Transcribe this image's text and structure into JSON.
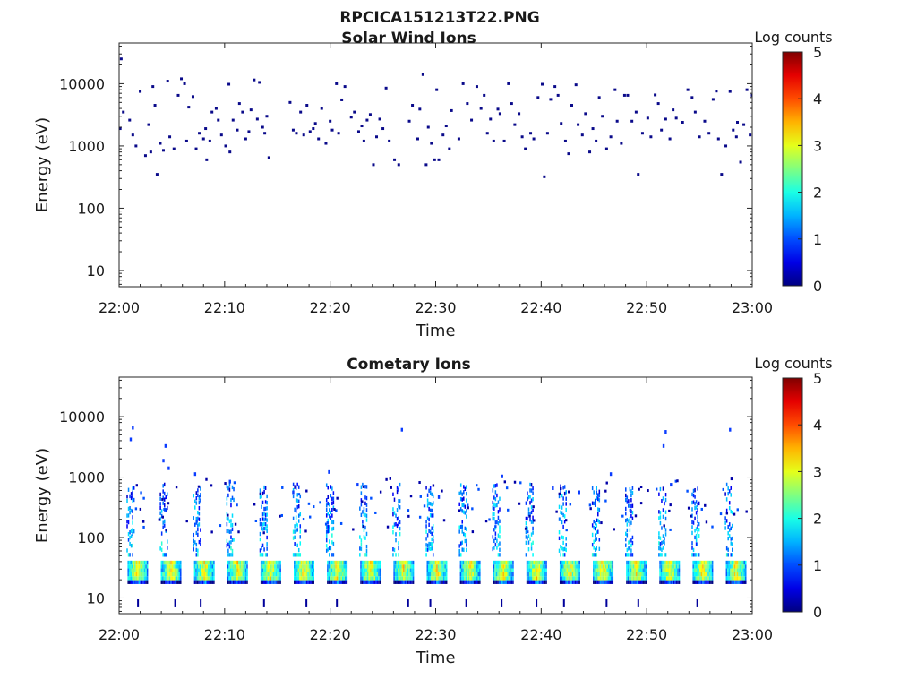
{
  "figure": {
    "title": "RPCICA151213T22.PNG"
  },
  "colors": {
    "dot": "#0a0a8a",
    "axis": "#262626"
  },
  "chart_data": [
    {
      "type": "heatmap",
      "title": "Solar Wind Ions",
      "xlabel": "Time",
      "ylabel": "Energy (eV)",
      "x_ticks": [
        "22:00",
        "22:10",
        "22:20",
        "22:30",
        "22:40",
        "22:50",
        "23:00"
      ],
      "y_scale": "log",
      "y_ticks": [
        "10",
        "100",
        "1000",
        "10000"
      ],
      "ylim": [
        5.5,
        45000
      ],
      "xlim_minutes": [
        0,
        60
      ],
      "colorbar": {
        "label": "Log counts",
        "ticks": [
          "0",
          "1",
          "2",
          "3",
          "4",
          "5"
        ],
        "range": [
          0,
          5
        ],
        "colormap": "jet"
      },
      "points": [
        [
          0.2,
          25000
        ],
        [
          0.1,
          1900
        ],
        [
          0.4,
          3500
        ],
        [
          1.0,
          2600
        ],
        [
          1.3,
          1500
        ],
        [
          1.6,
          1000
        ],
        [
          2.0,
          7500
        ],
        [
          2.5,
          700
        ],
        [
          2.8,
          2200
        ],
        [
          3.0,
          800
        ],
        [
          3.2,
          9000
        ],
        [
          3.4,
          4500
        ],
        [
          3.6,
          350
        ],
        [
          3.9,
          1100
        ],
        [
          4.2,
          850
        ],
        [
          4.6,
          11000
        ],
        [
          4.8,
          1400
        ],
        [
          5.2,
          900
        ],
        [
          5.6,
          6500
        ],
        [
          5.9,
          12000
        ],
        [
          6.2,
          10000
        ],
        [
          6.4,
          1200
        ],
        [
          6.6,
          4200
        ],
        [
          7.0,
          6200
        ],
        [
          7.3,
          900
        ],
        [
          7.6,
          1600
        ],
        [
          8.0,
          1300
        ],
        [
          8.2,
          1900
        ],
        [
          8.3,
          600
        ],
        [
          8.6,
          1200
        ],
        [
          8.8,
          3500
        ],
        [
          9.2,
          4000
        ],
        [
          9.4,
          2600
        ],
        [
          9.7,
          1500
        ],
        [
          10.1,
          1000
        ],
        [
          10.4,
          9800
        ],
        [
          10.5,
          800
        ],
        [
          10.8,
          2600
        ],
        [
          11.2,
          1800
        ],
        [
          11.4,
          4800
        ],
        [
          11.7,
          3500
        ],
        [
          12.0,
          1300
        ],
        [
          12.3,
          1700
        ],
        [
          12.5,
          3800
        ],
        [
          12.8,
          11500
        ],
        [
          13.1,
          2700
        ],
        [
          13.3,
          10500
        ],
        [
          13.6,
          2000
        ],
        [
          13.8,
          1600
        ],
        [
          14.0,
          3000
        ],
        [
          14.2,
          650
        ],
        [
          16.2,
          5000
        ],
        [
          16.5,
          1800
        ],
        [
          16.8,
          1600
        ],
        [
          17.2,
          3500
        ],
        [
          17.5,
          1500
        ],
        [
          17.8,
          4500
        ],
        [
          18.1,
          1700
        ],
        [
          18.4,
          1900
        ],
        [
          18.6,
          2300
        ],
        [
          18.9,
          1300
        ],
        [
          19.2,
          4000
        ],
        [
          19.6,
          1100
        ],
        [
          20.0,
          2500
        ],
        [
          20.2,
          1800
        ],
        [
          20.6,
          10000
        ],
        [
          20.8,
          1600
        ],
        [
          21.1,
          5500
        ],
        [
          21.4,
          9000
        ],
        [
          22.0,
          2900
        ],
        [
          22.3,
          3500
        ],
        [
          22.7,
          1700
        ],
        [
          23.0,
          2100
        ],
        [
          23.2,
          1200
        ],
        [
          23.5,
          2600
        ],
        [
          23.8,
          3200
        ],
        [
          24.1,
          500
        ],
        [
          24.4,
          1400
        ],
        [
          24.7,
          2700
        ],
        [
          25.0,
          1900
        ],
        [
          25.3,
          8500
        ],
        [
          25.6,
          1200
        ],
        [
          26.1,
          600
        ],
        [
          26.5,
          500
        ],
        [
          27.5,
          2500
        ],
        [
          27.8,
          4500
        ],
        [
          28.3,
          1300
        ],
        [
          28.5,
          3900
        ],
        [
          28.8,
          14000
        ],
        [
          29.1,
          500
        ],
        [
          29.3,
          2000
        ],
        [
          29.6,
          1100
        ],
        [
          29.9,
          600
        ],
        [
          30.1,
          8000
        ],
        [
          30.3,
          600
        ],
        [
          30.7,
          1500
        ],
        [
          31.0,
          2100
        ],
        [
          31.3,
          900
        ],
        [
          31.5,
          3700
        ],
        [
          32.2,
          1300
        ],
        [
          32.6,
          10000
        ],
        [
          33.0,
          4800
        ],
        [
          33.4,
          2600
        ],
        [
          33.9,
          9000
        ],
        [
          34.3,
          4000
        ],
        [
          34.6,
          6500
        ],
        [
          34.9,
          1600
        ],
        [
          35.2,
          2700
        ],
        [
          35.5,
          1200
        ],
        [
          35.9,
          3900
        ],
        [
          36.1,
          3300
        ],
        [
          36.5,
          1200
        ],
        [
          36.9,
          10000
        ],
        [
          37.2,
          4800
        ],
        [
          37.5,
          2200
        ],
        [
          37.9,
          3300
        ],
        [
          38.2,
          1400
        ],
        [
          38.5,
          900
        ],
        [
          39.0,
          1600
        ],
        [
          39.3,
          1300
        ],
        [
          39.7,
          6000
        ],
        [
          40.1,
          9800
        ],
        [
          40.3,
          320
        ],
        [
          40.6,
          1600
        ],
        [
          40.9,
          5600
        ],
        [
          41.3,
          9000
        ],
        [
          41.6,
          6500
        ],
        [
          41.9,
          2300
        ],
        [
          42.3,
          1200
        ],
        [
          42.6,
          750
        ],
        [
          42.9,
          4500
        ],
        [
          43.3,
          9600
        ],
        [
          43.5,
          2200
        ],
        [
          43.9,
          1500
        ],
        [
          44.2,
          3300
        ],
        [
          44.6,
          800
        ],
        [
          44.9,
          1900
        ],
        [
          45.2,
          1200
        ],
        [
          45.5,
          6000
        ],
        [
          45.8,
          3000
        ],
        [
          46.2,
          900
        ],
        [
          46.6,
          1400
        ],
        [
          47.0,
          8000
        ],
        [
          47.2,
          2500
        ],
        [
          47.6,
          1100
        ],
        [
          47.9,
          6500
        ],
        [
          48.2,
          6500
        ],
        [
          48.6,
          2500
        ],
        [
          49.0,
          3500
        ],
        [
          49.2,
          350
        ],
        [
          49.6,
          1600
        ],
        [
          50.1,
          2800
        ],
        [
          50.4,
          1400
        ],
        [
          50.8,
          6600
        ],
        [
          51.1,
          4800
        ],
        [
          51.4,
          1800
        ],
        [
          51.8,
          2700
        ],
        [
          52.2,
          1300
        ],
        [
          52.5,
          3800
        ],
        [
          52.8,
          2800
        ],
        [
          53.4,
          2400
        ],
        [
          53.9,
          8000
        ],
        [
          54.3,
          6000
        ],
        [
          54.6,
          3500
        ],
        [
          55.0,
          1400
        ],
        [
          55.5,
          2500
        ],
        [
          55.9,
          1600
        ],
        [
          56.3,
          5600
        ],
        [
          56.6,
          7600
        ],
        [
          56.8,
          1300
        ],
        [
          57.1,
          350
        ],
        [
          57.5,
          1000
        ],
        [
          57.9,
          7500
        ],
        [
          58.2,
          1800
        ],
        [
          58.5,
          1400
        ],
        [
          58.6,
          2400
        ],
        [
          58.9,
          550
        ],
        [
          59.2,
          2200
        ],
        [
          59.5,
          8000
        ],
        [
          59.8,
          1500
        ],
        [
          60.0,
          6500
        ]
      ]
    },
    {
      "type": "heatmap",
      "title": "Cometary Ions",
      "xlabel": "Time",
      "ylabel": "Energy (eV)",
      "x_ticks": [
        "22:00",
        "22:10",
        "22:20",
        "22:30",
        "22:40",
        "22:50",
        "23:00"
      ],
      "y_scale": "log",
      "y_ticks": [
        "10",
        "100",
        "1000",
        "10000"
      ],
      "ylim": [
        5.5,
        45000
      ],
      "xlim_minutes": [
        0,
        60
      ],
      "colorbar": {
        "label": "Log counts",
        "ticks": [
          "0",
          "1",
          "2",
          "3",
          "4",
          "5"
        ],
        "range": [
          0,
          5
        ],
        "colormap": "jet"
      },
      "period_minutes": 3.15,
      "band_start_minutes": 1.0,
      "band_energy_range": [
        17,
        45
      ],
      "sparse_points": [
        [
          1.0,
          4500
        ],
        [
          1.2,
          7000
        ],
        [
          4.1,
          2000
        ],
        [
          4.3,
          3500
        ],
        [
          4.6,
          1500
        ],
        [
          7.1,
          1200
        ],
        [
          10.4,
          900
        ],
        [
          16.4,
          600
        ],
        [
          19.8,
          1300
        ],
        [
          22.5,
          800
        ],
        [
          26.7,
          6500
        ],
        [
          30.2,
          500
        ],
        [
          36.2,
          1100
        ],
        [
          41.0,
          700
        ],
        [
          46.5,
          1200
        ],
        [
          51.5,
          3500
        ],
        [
          51.7,
          6000
        ],
        [
          57.8,
          6500
        ],
        [
          52.2,
          800
        ],
        [
          43.5,
          600
        ]
      ]
    }
  ]
}
